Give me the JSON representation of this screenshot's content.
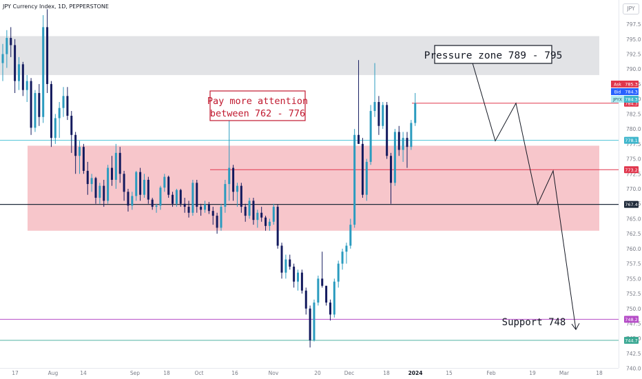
{
  "header": {
    "title": "JPY Currency Index, 1D, PEPPERSTONE",
    "currency": "JPY"
  },
  "colors": {
    "up": "#2a9bbf",
    "down": "#131a5e",
    "pink_zone": "#f7c6cb",
    "grey_zone": "#e2e3e6",
    "red_line": "#e0364c",
    "cyan_line": "#4ec3d6",
    "dark_line": "#1f2a3a",
    "purple_line": "#b54cc7",
    "teal_line": "#4fb3a2"
  },
  "chart_data": {
    "type": "candlestick",
    "y_axis": {
      "range": [
        739.5,
        800.5
      ],
      "ticks": [
        "740.0",
        "742.5",
        "745.0",
        "747.5",
        "750.0",
        "752.5",
        "755.0",
        "757.5",
        "760.0",
        "762.5",
        "765.0",
        "767.5",
        "770.0",
        "772.5",
        "775.0",
        "777.5",
        "780.0",
        "782.5",
        "785.0",
        "787.5",
        "790.0",
        "792.5",
        "795.0",
        "797.5"
      ]
    },
    "x_axis": {
      "ticks": [
        "17",
        "Aug",
        "14",
        "Sep",
        "18",
        "Oct",
        "16",
        "Nov",
        "20",
        "Dec",
        "18",
        "2024",
        "15",
        "Feb",
        "19",
        "Mar",
        "18"
      ],
      "bold_ticks": [
        "2024"
      ]
    },
    "ohlc": [
      [
        791.0,
        794.2,
        788.0,
        792.5
      ],
      [
        792.5,
        796.5,
        790.2,
        795.2
      ],
      [
        795.2,
        797.0,
        792.0,
        794.0
      ],
      [
        794.0,
        795.0,
        786.0,
        788.0
      ],
      [
        788.0,
        792.0,
        786.5,
        790.8
      ],
      [
        790.8,
        791.2,
        785.5,
        786.5
      ],
      [
        786.5,
        789.0,
        784.5,
        788.0
      ],
      [
        788.0,
        788.5,
        779.0,
        780.2
      ],
      [
        780.2,
        786.5,
        779.5,
        786.0
      ],
      [
        786.0,
        787.5,
        780.5,
        782.0
      ],
      [
        782.0,
        799.0,
        781.0,
        797.0
      ],
      [
        797.0,
        800.0,
        786.0,
        787.5
      ],
      [
        787.5,
        788.0,
        777.0,
        778.5
      ],
      [
        778.5,
        782.5,
        777.5,
        781.8
      ],
      [
        781.8,
        784.5,
        778.5,
        783.5
      ],
      [
        783.5,
        787.0,
        782.0,
        785.5
      ],
      [
        785.5,
        787.0,
        781.5,
        782.2
      ],
      [
        782.2,
        783.0,
        776.0,
        779.0
      ],
      [
        779.0,
        779.5,
        772.5,
        775.5
      ],
      [
        775.5,
        778.0,
        772.5,
        777.0
      ],
      [
        777.0,
        777.5,
        772.5,
        773.0
      ],
      [
        773.0,
        774.5,
        769.0,
        770.8
      ],
      [
        770.8,
        772.5,
        769.5,
        771.8
      ],
      [
        771.8,
        772.0,
        767.5,
        768.5
      ],
      [
        768.5,
        771.0,
        767.5,
        770.5
      ],
      [
        770.5,
        771.5,
        767.0,
        768.0
      ],
      [
        768.0,
        774.0,
        767.5,
        773.5
      ],
      [
        773.5,
        775.5,
        770.5,
        771.5
      ],
      [
        771.5,
        777.5,
        770.0,
        776.0
      ],
      [
        776.0,
        777.0,
        771.0,
        772.5
      ],
      [
        772.5,
        773.0,
        768.0,
        769.5
      ],
      [
        769.5,
        770.0,
        766.2,
        767.2
      ],
      [
        767.2,
        769.5,
        766.5,
        768.8
      ],
      [
        768.8,
        773.0,
        768.0,
        772.8
      ],
      [
        772.8,
        773.5,
        768.0,
        769.0
      ],
      [
        769.0,
        772.5,
        768.5,
        771.5
      ],
      [
        771.5,
        772.0,
        767.5,
        768.2
      ],
      [
        768.2,
        768.5,
        766.5,
        767.0
      ],
      [
        767.0,
        767.5,
        766.0,
        767.2
      ],
      [
        767.2,
        770.5,
        766.5,
        770.2
      ],
      [
        770.2,
        772.5,
        769.5,
        772.0
      ],
      [
        772.0,
        772.2,
        768.5,
        769.0
      ],
      [
        769.0,
        769.5,
        767.0,
        767.5
      ],
      [
        767.5,
        770.0,
        767.0,
        769.8
      ],
      [
        769.8,
        770.0,
        767.0,
        767.5
      ],
      [
        767.5,
        768.5,
        766.0,
        767.0
      ],
      [
        767.0,
        768.0,
        765.2,
        766.0
      ],
      [
        766.0,
        771.5,
        765.5,
        771.0
      ],
      [
        771.0,
        771.5,
        766.0,
        767.0
      ],
      [
        767.0,
        767.5,
        765.5,
        766.5
      ],
      [
        766.5,
        768.0,
        766.0,
        767.4
      ],
      [
        767.4,
        767.8,
        765.8,
        766.3
      ],
      [
        766.3,
        767.0,
        764.0,
        765.5
      ],
      [
        765.5,
        766.0,
        762.5,
        763.5
      ],
      [
        763.5,
        767.5,
        763.0,
        767.0
      ],
      [
        767.0,
        771.5,
        766.0,
        770.8
      ],
      [
        770.8,
        782.0,
        768.0,
        773.5
      ],
      [
        773.5,
        774.0,
        768.0,
        769.5
      ],
      [
        769.5,
        771.0,
        767.0,
        770.5
      ],
      [
        770.5,
        771.0,
        766.0,
        767.0
      ],
      [
        767.0,
        767.5,
        764.5,
        765.5
      ],
      [
        765.5,
        768.5,
        765.0,
        768.0
      ],
      [
        768.0,
        768.5,
        764.0,
        764.8
      ],
      [
        764.8,
        766.5,
        763.5,
        766.0
      ],
      [
        766.0,
        767.0,
        764.5,
        765.2
      ],
      [
        765.2,
        765.5,
        763.0,
        763.8
      ],
      [
        763.8,
        765.0,
        763.0,
        764.5
      ],
      [
        764.5,
        767.5,
        764.0,
        767.0
      ],
      [
        767.0,
        767.4,
        760.0,
        760.5
      ],
      [
        760.5,
        761.0,
        755.0,
        756.0
      ],
      [
        756.0,
        759.0,
        755.0,
        758.2
      ],
      [
        758.2,
        759.0,
        756.5,
        757.0
      ],
      [
        757.0,
        757.5,
        753.5,
        754.5
      ],
      [
        754.5,
        756.5,
        753.0,
        756.0
      ],
      [
        756.0,
        756.5,
        752.5,
        753.0
      ],
      [
        753.0,
        753.5,
        749.0,
        750.0
      ],
      [
        750.0,
        750.5,
        743.5,
        744.7
      ],
      [
        744.7,
        751.5,
        744.5,
        751.0
      ],
      [
        751.0,
        755.5,
        750.5,
        755.0
      ],
      [
        755.0,
        759.5,
        753.5,
        753.8
      ],
      [
        753.8,
        753.8,
        750.5,
        751.0
      ],
      [
        751.0,
        751.5,
        748.0,
        749.0
      ],
      [
        749.0,
        755.0,
        748.5,
        754.5
      ],
      [
        754.5,
        758.0,
        753.5,
        757.5
      ],
      [
        757.5,
        760.0,
        756.5,
        759.5
      ],
      [
        759.5,
        761.0,
        757.5,
        760.5
      ],
      [
        760.5,
        765.0,
        760.0,
        764.0
      ],
      [
        764.0,
        780.0,
        763.5,
        779.0
      ],
      [
        779.0,
        791.5,
        777.5,
        777.5
      ],
      [
        777.5,
        778.5,
        768.5,
        769.0
      ],
      [
        769.0,
        775.0,
        768.0,
        774.5
      ],
      [
        774.5,
        784.0,
        774.0,
        783.0
      ],
      [
        783.0,
        791.0,
        782.0,
        784.5
      ],
      [
        784.5,
        785.5,
        779.0,
        780.5
      ],
      [
        780.5,
        784.5,
        780.0,
        784.0
      ],
      [
        784.0,
        784.5,
        775.0,
        775.5
      ],
      [
        775.5,
        776.0,
        767.5,
        771.0
      ],
      [
        771.0,
        780.0,
        770.5,
        779.5
      ],
      [
        779.5,
        780.5,
        775.5,
        776.5
      ],
      [
        776.5,
        779.5,
        774.5,
        778.5
      ],
      [
        778.5,
        779.5,
        773.5,
        777.0
      ],
      [
        777.0,
        781.5,
        776.5,
        781.0
      ],
      [
        781.0,
        786.0,
        780.5,
        784.3
      ]
    ],
    "zones": [
      {
        "name": "pressure",
        "from": 789,
        "to": 795.5
      },
      {
        "name": "attention",
        "from": 763,
        "to": 777.2
      }
    ],
    "levels": [
      {
        "label": "784.3",
        "value": 784.3
      },
      {
        "label": "778.1",
        "value": 778.1
      },
      {
        "label": "773.2",
        "value": 773.2
      },
      {
        "label": "767.4",
        "value": 767.4
      },
      {
        "label": "748.2",
        "value": 748.2
      },
      {
        "label": "744.7",
        "value": 744.7
      }
    ],
    "price_tags": [
      {
        "label": "Ask",
        "value": "785.3"
      },
      {
        "label": "Bid",
        "value": "784.3"
      },
      {
        "label": "JPYX",
        "value": "784.3"
      }
    ],
    "projection": [
      [
        0,
        791
      ],
      [
        0.22,
        778
      ],
      [
        0.42,
        784.3
      ],
      [
        0.63,
        767.4
      ],
      [
        0.78,
        773
      ],
      [
        1,
        746.5
      ]
    ],
    "annotations": [
      {
        "text": "Pressure zone 789 - 795",
        "kind": "boxed"
      },
      {
        "text": "Pay more attention",
        "kind": "boxed-red-line1"
      },
      {
        "text": "between 762 - 776",
        "kind": "boxed-red-line2"
      },
      {
        "text": "Support 748",
        "kind": "plain"
      }
    ]
  }
}
